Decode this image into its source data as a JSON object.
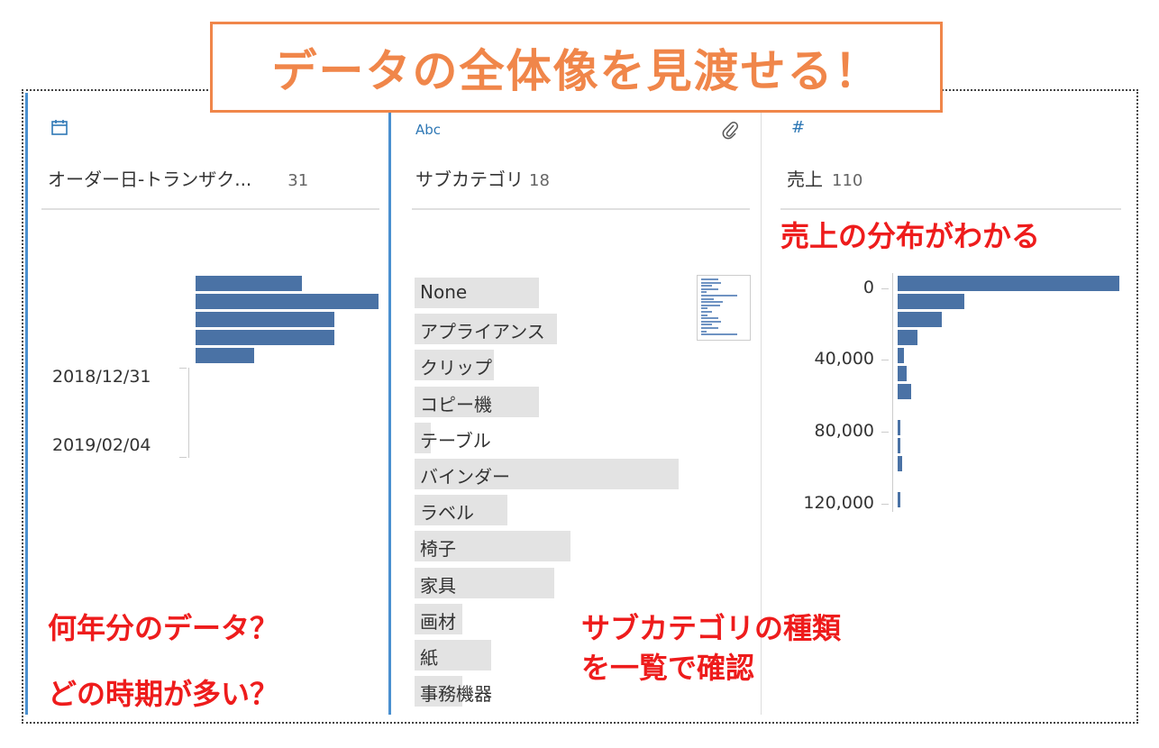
{
  "banner": {
    "title": "データの全体像を見渡せる！"
  },
  "colors": {
    "accent_orange": "#f0864a",
    "bar_blue": "#4a72a5",
    "annotation_red": "#ee1c1c",
    "selection_blue": "#4a90d0"
  },
  "cards": {
    "date": {
      "icon": "calendar-icon",
      "name": "オーダー日-トランザク...",
      "count": "31",
      "ticks": [
        "2018/12/31",
        "2019/02/04"
      ],
      "bars": [
        0.58,
        1.0,
        0.76,
        0.76,
        0.32
      ]
    },
    "category": {
      "icon": "abc-string-icon",
      "type_label": "Abc",
      "attachment_icon": "paperclip-icon",
      "name": "サブカテゴリ",
      "count": "18",
      "items": [
        {
          "label": "None",
          "share": 0.47
        },
        {
          "label": "アプライアンス",
          "share": 0.54
        },
        {
          "label": "クリップ",
          "share": 0.3
        },
        {
          "label": "コピー機",
          "share": 0.47
        },
        {
          "label": "テーブル",
          "share": 0.06
        },
        {
          "label": "バインダー",
          "share": 1.0
        },
        {
          "label": "ラベル",
          "share": 0.35
        },
        {
          "label": "椅子",
          "share": 0.59
        },
        {
          "label": "家具",
          "share": 0.53
        },
        {
          "label": "画材",
          "share": 0.18
        },
        {
          "label": "紙",
          "share": 0.29
        },
        {
          "label": "事務機器",
          "share": 0.18
        }
      ]
    },
    "sales": {
      "icon": "hash-icon",
      "type_label": "#",
      "name": "売上",
      "count": "110",
      "ticks": [
        "0",
        "40,000",
        "80,000",
        "120,000"
      ],
      "bars": [
        1.0,
        0.3,
        0.2,
        0.09,
        0.03,
        0.04,
        0.06,
        0,
        0.012,
        0.012,
        0.02,
        0,
        0.012
      ]
    }
  },
  "annotations": {
    "sales_note": "売上の分布がわかる",
    "date_note_1": "何年分のデータ？",
    "date_note_2": "どの時期が多い？",
    "category_note_1": "サブカテゴリの種類",
    "category_note_2": "を一覧で確認"
  }
}
